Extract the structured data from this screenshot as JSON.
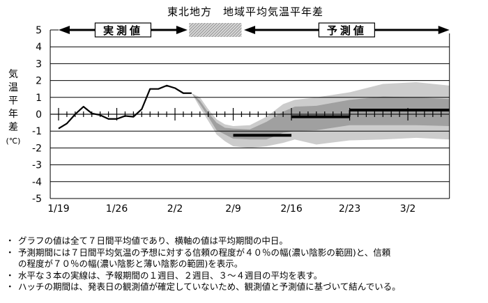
{
  "title": "東北地方　地域平均気温平年差",
  "notes": [
    "グラフの値は全て７日間平均値であり、横軸の値は平均期間の中日。",
    "予測期間には７日間平均気温の予想に対する信頼の程度が４０％の幅(濃い陰影の範囲)と、信頼",
    "の程度が７０％の幅(濃い陰影と薄い陰影の範囲)を表示。",
    "水平な３本の実線は、予報期間の１週目、２週目、３～４週目の平均を表す。",
    "ハッチの期間は、発表日の観測値が確定していないため、観測値と予測値に基づいて結んでいる。"
  ],
  "bullet": "・",
  "chart_data": {
    "type": "line",
    "title": "東北地方　地域平均気温平年差",
    "ylabel": "気温平年差(℃)",
    "ylabel_chars": [
      "気",
      "温",
      "平",
      "年",
      "差",
      "(℃)"
    ],
    "ylim": [
      -5,
      5
    ],
    "yticks": [
      5,
      4,
      3,
      2,
      1,
      0,
      -1,
      -2,
      -3,
      -4,
      -5
    ],
    "xticks": [
      {
        "day": 0,
        "label": "1/19"
      },
      {
        "day": 7,
        "label": "1/26"
      },
      {
        "day": 14,
        "label": "2/2"
      },
      {
        "day": 21,
        "label": "2/9"
      },
      {
        "day": 28,
        "label": "2/16"
      },
      {
        "day": 35,
        "label": "2/23"
      },
      {
        "day": 42,
        "label": "3/2"
      }
    ],
    "xlim_days": [
      -1,
      47
    ],
    "period_labels": {
      "observed": "実測値",
      "forecast": "予測値"
    },
    "periods_days": {
      "observed": [
        0,
        15.5
      ],
      "hatch": [
        15.7,
        22
      ],
      "forecast": [
        22.3,
        47
      ]
    },
    "observed": {
      "name": "実測値",
      "days": [
        0,
        1,
        2,
        3,
        4,
        5,
        6,
        7,
        8,
        9,
        10,
        11,
        12,
        13,
        14,
        15,
        16
      ],
      "values": [
        -0.85,
        -0.55,
        0.0,
        0.45,
        0.05,
        -0.05,
        -0.28,
        -0.28,
        -0.1,
        -0.15,
        0.3,
        1.5,
        1.5,
        1.7,
        1.55,
        1.25,
        1.25
      ]
    },
    "forecast": {
      "name": "予測値",
      "days": [
        16,
        17,
        18,
        19,
        20,
        21,
        23,
        25,
        27,
        28.4,
        31,
        35,
        39,
        43,
        47
      ],
      "center": [
        1.25,
        0.7,
        0.0,
        -0.7,
        -1.0,
        -1.15,
        -1.2,
        -1.0,
        -0.5,
        -0.3,
        -0.2,
        0.1,
        0.2,
        0.2,
        0.1
      ],
      "inner_upper": [
        1.25,
        0.8,
        0.1,
        -0.5,
        -0.8,
        -0.85,
        -0.9,
        -0.45,
        0.15,
        0.45,
        0.5,
        0.85,
        1.05,
        1.0,
        0.9
      ],
      "inner_lower": [
        1.25,
        0.6,
        -0.15,
        -0.95,
        -1.2,
        -1.45,
        -1.5,
        -1.5,
        -1.1,
        -1.0,
        -0.95,
        -0.65,
        -0.65,
        -0.65,
        -0.7
      ],
      "outer_upper": [
        1.25,
        1.0,
        0.3,
        -0.3,
        -0.6,
        -0.7,
        -0.65,
        -0.15,
        0.6,
        0.85,
        1.0,
        1.3,
        1.8,
        1.9,
        1.7
      ],
      "outer_lower": [
        1.25,
        0.4,
        -0.4,
        -1.2,
        -1.6,
        -1.9,
        -2.0,
        -1.9,
        -1.7,
        -1.5,
        -1.8,
        -1.55,
        -1.5,
        -1.4,
        -1.5
      ]
    },
    "weekly_means": [
      {
        "name": "1週目",
        "days": [
          21,
          28
        ],
        "value": -1.25
      },
      {
        "name": "2週目",
        "days": [
          28,
          35
        ],
        "value": -0.15
      },
      {
        "name": "3～4週目",
        "days": [
          35,
          47
        ],
        "value": 0.25
      }
    ],
    "colors": {
      "line": "#000000",
      "inner_band": "#a0a0a0",
      "outer_band": "#cccccc",
      "grid": "#000000"
    }
  }
}
